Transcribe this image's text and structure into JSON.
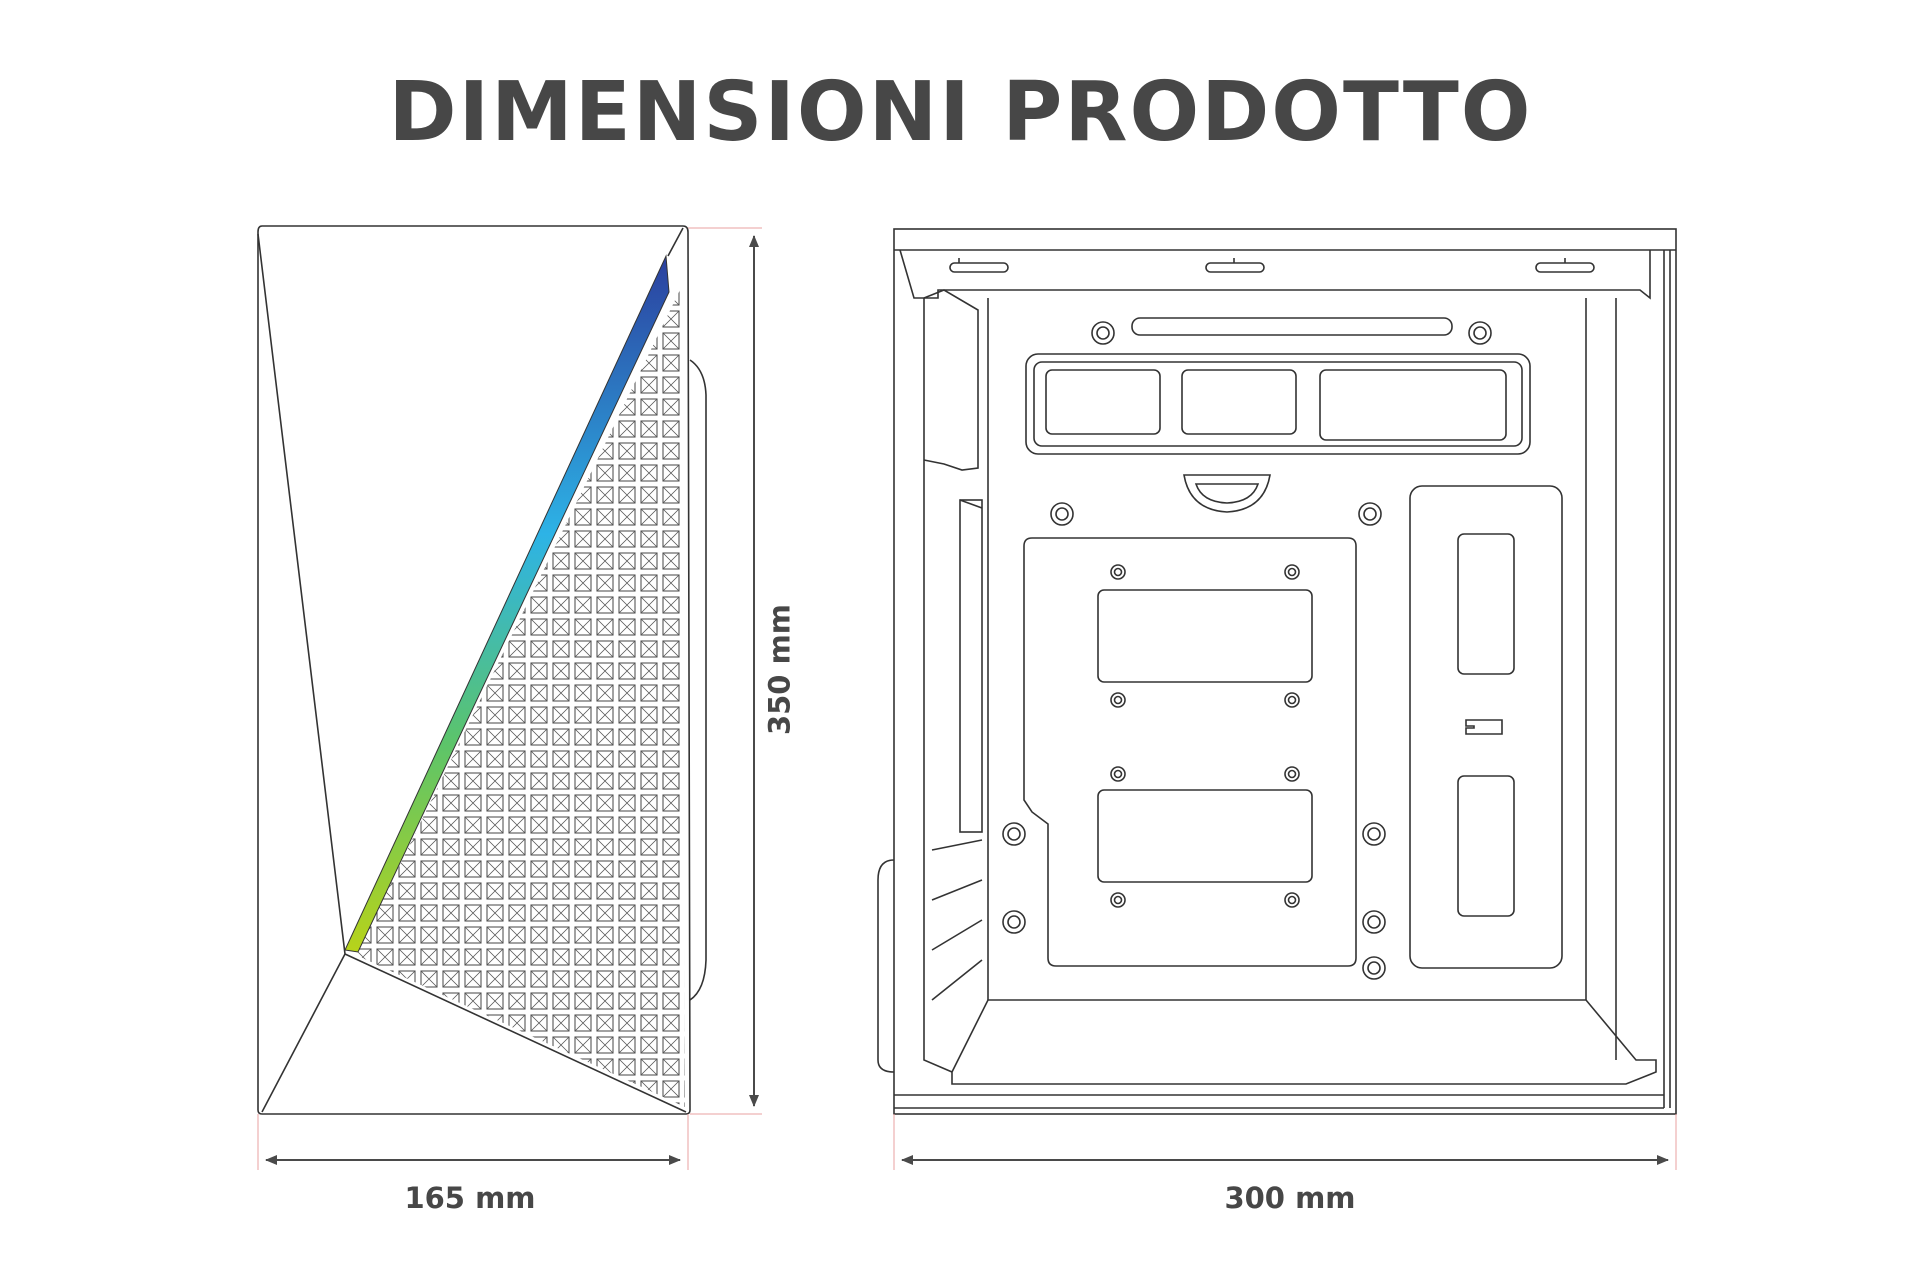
{
  "title": "DIMENSIONI PRODOTTO",
  "dimensions": {
    "width": "165 mm",
    "height": "350 mm",
    "depth": "300 mm"
  },
  "views": [
    "front-view",
    "side-view"
  ],
  "colors": {
    "text": "#474747",
    "line": "#333333",
    "dimension_line": "#4a4a4a",
    "extension_line": "#e8a0a0",
    "rgb_strip": [
      "#a6cc1f",
      "#3fbf7a",
      "#2cb3e8",
      "#2a4aa8"
    ]
  }
}
